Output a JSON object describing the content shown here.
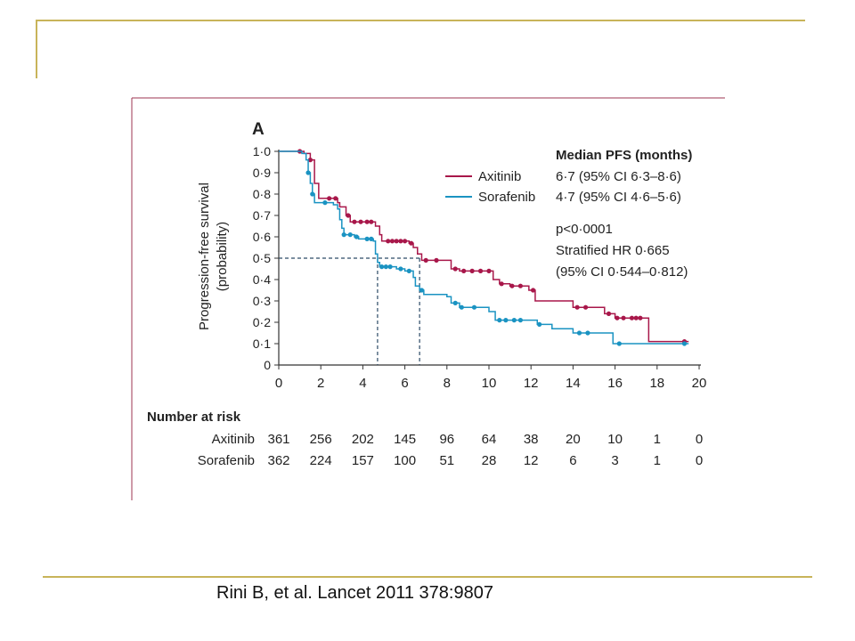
{
  "slide": {
    "citation": "Rini B, et al. Lancet 2011 378:9807"
  },
  "colors": {
    "rule": "#c8b45a",
    "panel_border": "#9e3450",
    "axitinib": "#a8174a",
    "sorafenib": "#1a93c2"
  },
  "chart_data": {
    "type": "line",
    "subtype": "kaplan-meier step",
    "panel_label": "A",
    "ylabel": [
      "Progression-free survival",
      "(probability)"
    ],
    "xlim": [
      0,
      20
    ],
    "ylim": [
      0,
      1
    ],
    "x_ticks": [
      0,
      2,
      4,
      6,
      8,
      10,
      12,
      14,
      16,
      18,
      20
    ],
    "x_tick_labels": [
      "0",
      "2",
      "4",
      "6",
      "8",
      "10",
      "12",
      "14",
      "16",
      "18",
      "20"
    ],
    "y_ticks": [
      0,
      0.1,
      0.2,
      0.3,
      0.4,
      0.5,
      0.6,
      0.7,
      0.8,
      0.9,
      1.0
    ],
    "y_tick_labels": [
      "0",
      "0·1",
      "0·2",
      "0·3",
      "0·4",
      "0·5",
      "0·6",
      "0·7",
      "0·8",
      "0·9",
      "1·0"
    ],
    "legend": [
      {
        "name": "Axitinib",
        "text": "6·7 (95% CI 6·3–8·6)"
      },
      {
        "name": "Sorafenib",
        "text": "4·7 (95% CI 4·6–5·6)"
      }
    ],
    "annotations": {
      "median_title": "Median PFS (months)",
      "p_value": "p<0·0001",
      "hr": "Stratified HR 0·665",
      "hr_ci": "(95% CI 0·544–0·812)"
    },
    "median_reference": {
      "y": 0.5,
      "x_values": [
        4.7,
        6.7
      ]
    },
    "series": [
      {
        "name": "Axitinib",
        "points": [
          [
            0,
            1.0
          ],
          [
            1.2,
            0.99
          ],
          [
            1.5,
            0.96
          ],
          [
            1.7,
            0.85
          ],
          [
            1.9,
            0.78
          ],
          [
            2.8,
            0.76
          ],
          [
            2.9,
            0.74
          ],
          [
            3.2,
            0.7
          ],
          [
            3.4,
            0.67
          ],
          [
            4.6,
            0.65
          ],
          [
            4.8,
            0.61
          ],
          [
            4.9,
            0.58
          ],
          [
            6.2,
            0.57
          ],
          [
            6.4,
            0.55
          ],
          [
            6.6,
            0.52
          ],
          [
            6.8,
            0.49
          ],
          [
            7.3,
            0.49
          ],
          [
            8.0,
            0.49
          ],
          [
            8.2,
            0.45
          ],
          [
            8.6,
            0.44
          ],
          [
            10.2,
            0.4
          ],
          [
            10.5,
            0.38
          ],
          [
            11.0,
            0.37
          ],
          [
            11.9,
            0.35
          ],
          [
            12.2,
            0.3
          ],
          [
            14.0,
            0.27
          ],
          [
            15.5,
            0.24
          ],
          [
            16.0,
            0.22
          ],
          [
            17.2,
            0.22
          ],
          [
            17.6,
            0.11
          ],
          [
            19.5,
            0.11
          ]
        ],
        "censor_x": [
          1.0,
          1.5,
          2.4,
          2.7,
          3.3,
          3.6,
          3.9,
          4.2,
          4.4,
          5.2,
          5.4,
          5.6,
          5.8,
          6.0,
          6.3,
          7.0,
          7.5,
          8.4,
          8.8,
          9.2,
          9.6,
          10.0,
          10.6,
          11.1,
          11.5,
          12.1,
          14.2,
          14.6,
          15.7,
          16.1,
          16.4,
          16.8,
          17.0,
          17.2,
          19.3
        ]
      },
      {
        "name": "Sorafenib",
        "points": [
          [
            0,
            1.0
          ],
          [
            1.1,
            0.99
          ],
          [
            1.3,
            0.96
          ],
          [
            1.4,
            0.9
          ],
          [
            1.5,
            0.85
          ],
          [
            1.6,
            0.8
          ],
          [
            1.7,
            0.76
          ],
          [
            2.6,
            0.75
          ],
          [
            2.8,
            0.73
          ],
          [
            2.9,
            0.68
          ],
          [
            3.0,
            0.64
          ],
          [
            3.1,
            0.61
          ],
          [
            3.6,
            0.6
          ],
          [
            3.8,
            0.59
          ],
          [
            4.5,
            0.58
          ],
          [
            4.6,
            0.52
          ],
          [
            4.7,
            0.48
          ],
          [
            4.8,
            0.46
          ],
          [
            5.6,
            0.45
          ],
          [
            6.0,
            0.44
          ],
          [
            6.4,
            0.41
          ],
          [
            6.5,
            0.37
          ],
          [
            6.7,
            0.35
          ],
          [
            6.9,
            0.33
          ],
          [
            8.0,
            0.32
          ],
          [
            8.2,
            0.29
          ],
          [
            8.6,
            0.27
          ],
          [
            10.0,
            0.25
          ],
          [
            10.3,
            0.21
          ],
          [
            12.3,
            0.19
          ],
          [
            13.0,
            0.17
          ],
          [
            14.0,
            0.15
          ],
          [
            15.9,
            0.15
          ],
          [
            15.9,
            0.1
          ],
          [
            19.5,
            0.1
          ]
        ],
        "censor_x": [
          1.4,
          1.6,
          2.2,
          3.1,
          3.4,
          3.7,
          4.2,
          4.4,
          4.9,
          5.1,
          5.3,
          5.8,
          6.2,
          6.8,
          8.4,
          8.7,
          9.3,
          10.5,
          10.8,
          11.2,
          11.5,
          12.4,
          14.3,
          14.7,
          16.2,
          19.3
        ]
      }
    ]
  },
  "risk_table": {
    "title": "Number at risk",
    "rows": [
      {
        "label": "Axitinib",
        "values": [
          "361",
          "256",
          "202",
          "145",
          "96",
          "64",
          "38",
          "20",
          "10",
          "1",
          "0"
        ]
      },
      {
        "label": "Sorafenib",
        "values": [
          "362",
          "224",
          "157",
          "100",
          "51",
          "28",
          "12",
          "6",
          "3",
          "1",
          "0"
        ]
      }
    ]
  }
}
